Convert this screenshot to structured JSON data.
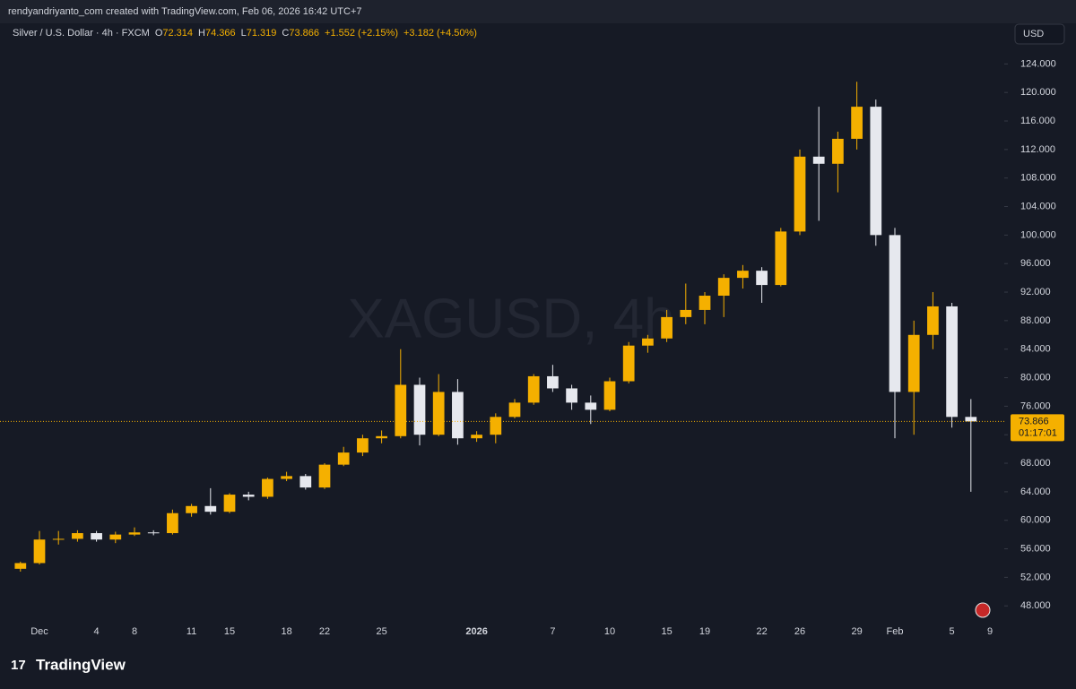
{
  "header": "rendyandriyanto_com created with TradingView.com, Feb 06, 2026 16:42 UTC+7",
  "legend": {
    "symbol": "Silver / U.S. Dollar · 4h · FXCM",
    "items": [
      {
        "label": "O",
        "value": "72.314"
      },
      {
        "label": "H",
        "value": "74.366"
      },
      {
        "label": "L",
        "value": "71.319"
      },
      {
        "label": "C",
        "value": "73.866"
      }
    ],
    "change": "+1.552 (+2.15%)",
    "change_day": "+3.182 (+4.50%)"
  },
  "watermark": "XAGUSD, 4h",
  "currency": "USD",
  "countdown": "01:17:01",
  "brand": "TradingView",
  "chart_data": {
    "type": "candlestick",
    "categories": [
      null,
      "Dec",
      null,
      null,
      "4",
      null,
      "8",
      null,
      null,
      "11",
      null,
      "15",
      null,
      null,
      "18",
      null,
      "22",
      null,
      null,
      "25",
      null,
      null,
      null,
      null,
      "2026",
      null,
      null,
      null,
      "7",
      null,
      null,
      "10",
      null,
      null,
      "15",
      null,
      "19",
      null,
      null,
      "22",
      null,
      "26",
      null,
      null,
      "29",
      null,
      "Feb",
      null,
      null,
      "5",
      null,
      "9"
    ],
    "open": [
      53.2,
      54,
      57.3,
      57.4,
      58.2,
      57.3,
      58,
      58.3,
      58.2,
      61,
      62,
      61.2,
      63.6,
      63.3,
      65.8,
      66.2,
      64.6,
      67.8,
      69.5,
      71.5,
      71.8,
      79,
      72,
      78,
      71.5,
      72,
      74.5,
      76.5,
      80.2,
      78.5,
      76.5,
      75.5,
      79.5,
      84.5,
      85.5,
      88.5,
      89.5,
      91.5,
      94,
      95,
      93,
      100.5,
      111,
      110,
      113.5,
      118,
      100,
      78,
      86,
      90,
      74.5,
      null
    ],
    "high": [
      54.2,
      58.5,
      58.5,
      58.6,
      58.5,
      58.4,
      59,
      58.6,
      61.5,
      62.3,
      64.5,
      63.8,
      64,
      66,
      66.8,
      66.5,
      68,
      70.3,
      72,
      72.6,
      84,
      80,
      80.5,
      79.8,
      72.5,
      75,
      77,
      80.5,
      81.8,
      79,
      77.5,
      80,
      85,
      86,
      89.5,
      93.2,
      92,
      94.5,
      95.8,
      95.5,
      101,
      112,
      118,
      114.5,
      121.5,
      119,
      101,
      88,
      92,
      90.5,
      77,
      null
    ],
    "low": [
      52.8,
      53.8,
      56.6,
      57,
      57,
      56.8,
      57.8,
      57.9,
      58,
      60.5,
      60.8,
      61,
      62.8,
      63,
      65.5,
      64.3,
      64.4,
      67.6,
      69,
      70.8,
      71.5,
      70.5,
      71.8,
      70.6,
      71,
      70.8,
      74.3,
      76.2,
      78,
      75.5,
      73.5,
      75.3,
      79.2,
      83.5,
      85,
      87.5,
      87.5,
      88.5,
      92.5,
      90.5,
      92.8,
      100,
      102,
      106,
      112,
      98.5,
      71.5,
      72,
      84,
      73,
      64,
      null
    ],
    "close": [
      54,
      57.3,
      57.4,
      58.2,
      57.3,
      58,
      58.3,
      58.2,
      61,
      62,
      61.2,
      63.6,
      63.3,
      65.8,
      66.2,
      64.6,
      67.8,
      69.5,
      71.5,
      71.8,
      79,
      72,
      78,
      71.5,
      72,
      74.5,
      76.5,
      80.2,
      78.5,
      76.5,
      75.5,
      79.5,
      84.5,
      85.5,
      88.5,
      89.5,
      91.5,
      94,
      95,
      93,
      100.5,
      111,
      110,
      113.5,
      118,
      100,
      78,
      86,
      90,
      74.5,
      73.866,
      null
    ],
    "up_color": "#f5b000",
    "down_color": "#e6e8ee",
    "ylim": [
      43,
      129.7
    ],
    "yticks": [
      {
        "value": 48,
        "label": "48.000"
      },
      {
        "value": 52,
        "label": "52.000"
      },
      {
        "value": 56,
        "label": "56.000"
      },
      {
        "value": 60,
        "label": "60.000"
      },
      {
        "value": 64,
        "label": "64.000"
      },
      {
        "value": 68,
        "label": "68.000"
      },
      {
        "value": 72,
        "label": "72.000"
      },
      {
        "value": 76,
        "label": "76.000"
      },
      {
        "value": 80,
        "label": "80.000"
      },
      {
        "value": 84,
        "label": "84.000"
      },
      {
        "value": 88,
        "label": "88.000"
      },
      {
        "value": 92,
        "label": "92.000"
      },
      {
        "value": 96,
        "label": "96.000"
      },
      {
        "value": 100,
        "label": "100.000"
      },
      {
        "value": 104,
        "label": "104.000"
      },
      {
        "value": 108,
        "label": "108.000"
      },
      {
        "value": 112,
        "label": "112.000"
      },
      {
        "value": 116,
        "label": "116.000"
      },
      {
        "value": 120,
        "label": "120.000"
      },
      {
        "value": 124,
        "label": "124.000"
      }
    ],
    "grid": false
  }
}
